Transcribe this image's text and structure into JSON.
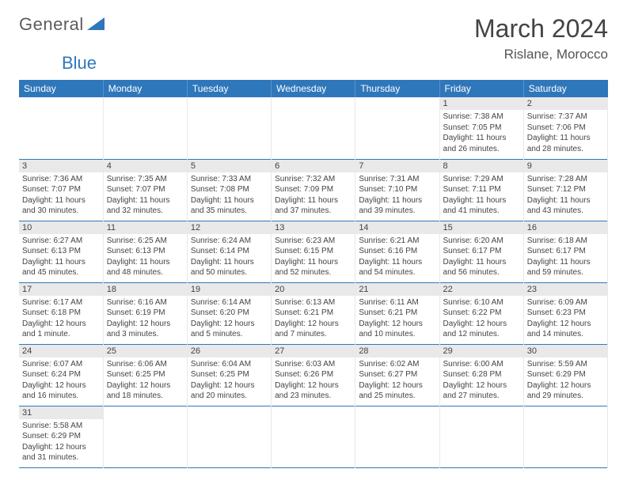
{
  "logo": {
    "t1": "General",
    "t2": "Blue"
  },
  "title": "March 2024",
  "location": "Rislane, Morocco",
  "colors": {
    "header_bg": "#2f77bb",
    "row_border": "#2f77bb",
    "dayrow_bg": "#e9e9e9"
  },
  "day_headers": [
    "Sunday",
    "Monday",
    "Tuesday",
    "Wednesday",
    "Thursday",
    "Friday",
    "Saturday"
  ],
  "weeks": [
    [
      null,
      null,
      null,
      null,
      null,
      {
        "n": "1",
        "sr": "Sunrise: 7:38 AM",
        "ss": "Sunset: 7:05 PM",
        "dl": "Daylight: 11 hours and 26 minutes."
      },
      {
        "n": "2",
        "sr": "Sunrise: 7:37 AM",
        "ss": "Sunset: 7:06 PM",
        "dl": "Daylight: 11 hours and 28 minutes."
      }
    ],
    [
      {
        "n": "3",
        "sr": "Sunrise: 7:36 AM",
        "ss": "Sunset: 7:07 PM",
        "dl": "Daylight: 11 hours and 30 minutes."
      },
      {
        "n": "4",
        "sr": "Sunrise: 7:35 AM",
        "ss": "Sunset: 7:07 PM",
        "dl": "Daylight: 11 hours and 32 minutes."
      },
      {
        "n": "5",
        "sr": "Sunrise: 7:33 AM",
        "ss": "Sunset: 7:08 PM",
        "dl": "Daylight: 11 hours and 35 minutes."
      },
      {
        "n": "6",
        "sr": "Sunrise: 7:32 AM",
        "ss": "Sunset: 7:09 PM",
        "dl": "Daylight: 11 hours and 37 minutes."
      },
      {
        "n": "7",
        "sr": "Sunrise: 7:31 AM",
        "ss": "Sunset: 7:10 PM",
        "dl": "Daylight: 11 hours and 39 minutes."
      },
      {
        "n": "8",
        "sr": "Sunrise: 7:29 AM",
        "ss": "Sunset: 7:11 PM",
        "dl": "Daylight: 11 hours and 41 minutes."
      },
      {
        "n": "9",
        "sr": "Sunrise: 7:28 AM",
        "ss": "Sunset: 7:12 PM",
        "dl": "Daylight: 11 hours and 43 minutes."
      }
    ],
    [
      {
        "n": "10",
        "sr": "Sunrise: 6:27 AM",
        "ss": "Sunset: 6:13 PM",
        "dl": "Daylight: 11 hours and 45 minutes."
      },
      {
        "n": "11",
        "sr": "Sunrise: 6:25 AM",
        "ss": "Sunset: 6:13 PM",
        "dl": "Daylight: 11 hours and 48 minutes."
      },
      {
        "n": "12",
        "sr": "Sunrise: 6:24 AM",
        "ss": "Sunset: 6:14 PM",
        "dl": "Daylight: 11 hours and 50 minutes."
      },
      {
        "n": "13",
        "sr": "Sunrise: 6:23 AM",
        "ss": "Sunset: 6:15 PM",
        "dl": "Daylight: 11 hours and 52 minutes."
      },
      {
        "n": "14",
        "sr": "Sunrise: 6:21 AM",
        "ss": "Sunset: 6:16 PM",
        "dl": "Daylight: 11 hours and 54 minutes."
      },
      {
        "n": "15",
        "sr": "Sunrise: 6:20 AM",
        "ss": "Sunset: 6:17 PM",
        "dl": "Daylight: 11 hours and 56 minutes."
      },
      {
        "n": "16",
        "sr": "Sunrise: 6:18 AM",
        "ss": "Sunset: 6:17 PM",
        "dl": "Daylight: 11 hours and 59 minutes."
      }
    ],
    [
      {
        "n": "17",
        "sr": "Sunrise: 6:17 AM",
        "ss": "Sunset: 6:18 PM",
        "dl": "Daylight: 12 hours and 1 minute."
      },
      {
        "n": "18",
        "sr": "Sunrise: 6:16 AM",
        "ss": "Sunset: 6:19 PM",
        "dl": "Daylight: 12 hours and 3 minutes."
      },
      {
        "n": "19",
        "sr": "Sunrise: 6:14 AM",
        "ss": "Sunset: 6:20 PM",
        "dl": "Daylight: 12 hours and 5 minutes."
      },
      {
        "n": "20",
        "sr": "Sunrise: 6:13 AM",
        "ss": "Sunset: 6:21 PM",
        "dl": "Daylight: 12 hours and 7 minutes."
      },
      {
        "n": "21",
        "sr": "Sunrise: 6:11 AM",
        "ss": "Sunset: 6:21 PM",
        "dl": "Daylight: 12 hours and 10 minutes."
      },
      {
        "n": "22",
        "sr": "Sunrise: 6:10 AM",
        "ss": "Sunset: 6:22 PM",
        "dl": "Daylight: 12 hours and 12 minutes."
      },
      {
        "n": "23",
        "sr": "Sunrise: 6:09 AM",
        "ss": "Sunset: 6:23 PM",
        "dl": "Daylight: 12 hours and 14 minutes."
      }
    ],
    [
      {
        "n": "24",
        "sr": "Sunrise: 6:07 AM",
        "ss": "Sunset: 6:24 PM",
        "dl": "Daylight: 12 hours and 16 minutes."
      },
      {
        "n": "25",
        "sr": "Sunrise: 6:06 AM",
        "ss": "Sunset: 6:25 PM",
        "dl": "Daylight: 12 hours and 18 minutes."
      },
      {
        "n": "26",
        "sr": "Sunrise: 6:04 AM",
        "ss": "Sunset: 6:25 PM",
        "dl": "Daylight: 12 hours and 20 minutes."
      },
      {
        "n": "27",
        "sr": "Sunrise: 6:03 AM",
        "ss": "Sunset: 6:26 PM",
        "dl": "Daylight: 12 hours and 23 minutes."
      },
      {
        "n": "28",
        "sr": "Sunrise: 6:02 AM",
        "ss": "Sunset: 6:27 PM",
        "dl": "Daylight: 12 hours and 25 minutes."
      },
      {
        "n": "29",
        "sr": "Sunrise: 6:00 AM",
        "ss": "Sunset: 6:28 PM",
        "dl": "Daylight: 12 hours and 27 minutes."
      },
      {
        "n": "30",
        "sr": "Sunrise: 5:59 AM",
        "ss": "Sunset: 6:29 PM",
        "dl": "Daylight: 12 hours and 29 minutes."
      }
    ],
    [
      {
        "n": "31",
        "sr": "Sunrise: 5:58 AM",
        "ss": "Sunset: 6:29 PM",
        "dl": "Daylight: 12 hours and 31 minutes."
      },
      null,
      null,
      null,
      null,
      null,
      null
    ]
  ]
}
